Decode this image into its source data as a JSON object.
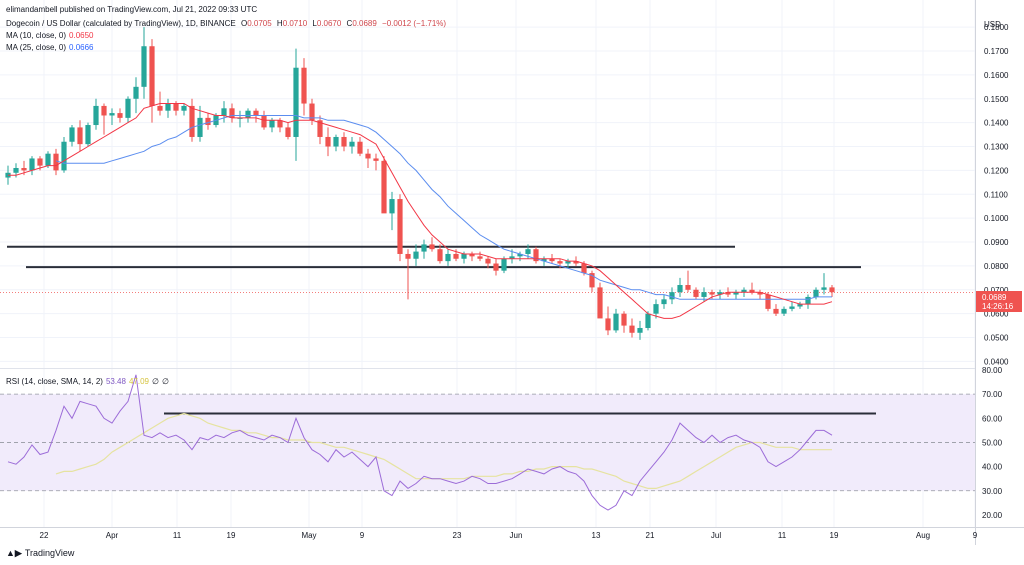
{
  "header": {
    "publisher": "elimandambell published on TradingView.com, Jul 21, 2022 09:33 UTC",
    "symbol": "Dogecoin / US Dollar (calculated by TradingView), 1D, BINANCE",
    "o_label": "O",
    "o_value": "0.0705",
    "h_label": "H",
    "h_value": "0.0710",
    "l_label": "L",
    "l_value": "0.0670",
    "c_label": "C",
    "c_value": "0.0689",
    "change": "−0.0012 (−1.71%)",
    "ma10_label": "MA (10, close, 0)",
    "ma10_value": "0.0650",
    "ma25_label": "MA (25, close, 0)",
    "ma25_value": "0.0666",
    "rsi_label": "RSI (14, close, SMA, 14, 2)",
    "rsi_value": "53.48",
    "rsi_sma_value": "47.09",
    "rsi_extra1": "∅",
    "rsi_extra2": "∅"
  },
  "brand": {
    "name": "TradingView",
    "logo_icon": "tradingview-logo-icon"
  },
  "colors": {
    "up": "#26a69a",
    "down": "#ef5350",
    "ma10": "#f23645",
    "ma25": "#5b8def",
    "rsi": "#9c6cd8",
    "rsi_sma": "#e6e3a0",
    "rsi_band": "#f1ebfb",
    "hline": "#2a2e39"
  },
  "chart_data": [
    {
      "type": "candlestick",
      "unit": "USD",
      "yaxis_label": "USD",
      "ylim": [
        0.0385,
        0.1855
      ],
      "ticks": [
        "0.0400",
        "0.0500",
        "0.0600",
        "0.0700",
        "0.0800",
        "0.0900",
        "0.1000",
        "0.1100",
        "0.1200",
        "0.1300",
        "0.1400",
        "0.1500",
        "0.1600",
        "0.1700",
        "0.1800"
      ],
      "last_price": "0.0689",
      "countdown": "14:26:16",
      "xlabels": [
        "22",
        "Apr",
        "11",
        "19",
        "May",
        "9",
        "23",
        "Jun",
        "13",
        "21",
        "Jul",
        "11",
        "19",
        "Aug",
        "9"
      ],
      "candles_ohlc": [
        [
          0.117,
          0.122,
          0.114,
          0.119
        ],
        [
          0.119,
          0.123,
          0.117,
          0.121
        ],
        [
          0.121,
          0.124,
          0.118,
          0.12
        ],
        [
          0.12,
          0.126,
          0.118,
          0.125
        ],
        [
          0.125,
          0.126,
          0.12,
          0.122
        ],
        [
          0.122,
          0.128,
          0.121,
          0.127
        ],
        [
          0.127,
          0.129,
          0.118,
          0.12
        ],
        [
          0.12,
          0.134,
          0.119,
          0.132
        ],
        [
          0.132,
          0.139,
          0.13,
          0.138
        ],
        [
          0.138,
          0.141,
          0.128,
          0.131
        ],
        [
          0.131,
          0.14,
          0.13,
          0.139
        ],
        [
          0.139,
          0.15,
          0.137,
          0.147
        ],
        [
          0.147,
          0.148,
          0.135,
          0.143
        ],
        [
          0.143,
          0.146,
          0.139,
          0.144
        ],
        [
          0.144,
          0.146,
          0.14,
          0.142
        ],
        [
          0.142,
          0.151,
          0.14,
          0.15
        ],
        [
          0.15,
          0.159,
          0.144,
          0.155
        ],
        [
          0.155,
          0.18,
          0.15,
          0.172
        ],
        [
          0.172,
          0.175,
          0.14,
          0.147
        ],
        [
          0.147,
          0.153,
          0.143,
          0.145
        ],
        [
          0.145,
          0.15,
          0.142,
          0.148
        ],
        [
          0.148,
          0.149,
          0.143,
          0.145
        ],
        [
          0.145,
          0.148,
          0.143,
          0.147
        ],
        [
          0.147,
          0.15,
          0.132,
          0.134
        ],
        [
          0.134,
          0.147,
          0.132,
          0.142
        ],
        [
          0.142,
          0.144,
          0.137,
          0.139
        ],
        [
          0.139,
          0.144,
          0.138,
          0.143
        ],
        [
          0.143,
          0.149,
          0.14,
          0.146
        ],
        [
          0.146,
          0.148,
          0.14,
          0.142
        ],
        [
          0.142,
          0.145,
          0.138,
          0.142
        ],
        [
          0.142,
          0.146,
          0.14,
          0.145
        ],
        [
          0.145,
          0.146,
          0.14,
          0.143
        ],
        [
          0.143,
          0.145,
          0.137,
          0.138
        ],
        [
          0.138,
          0.142,
          0.136,
          0.141
        ],
        [
          0.141,
          0.142,
          0.136,
          0.138
        ],
        [
          0.138,
          0.14,
          0.133,
          0.134
        ],
        [
          0.134,
          0.171,
          0.124,
          0.163
        ],
        [
          0.163,
          0.167,
          0.143,
          0.148
        ],
        [
          0.148,
          0.15,
          0.139,
          0.141
        ],
        [
          0.141,
          0.143,
          0.131,
          0.134
        ],
        [
          0.134,
          0.138,
          0.126,
          0.13
        ],
        [
          0.13,
          0.135,
          0.128,
          0.134
        ],
        [
          0.134,
          0.136,
          0.128,
          0.13
        ],
        [
          0.13,
          0.134,
          0.127,
          0.132
        ],
        [
          0.132,
          0.134,
          0.126,
          0.127
        ],
        [
          0.127,
          0.129,
          0.121,
          0.125
        ],
        [
          0.125,
          0.127,
          0.12,
          0.124
        ],
        [
          0.124,
          0.126,
          0.109,
          0.102
        ],
        [
          0.102,
          0.111,
          0.095,
          0.108
        ],
        [
          0.108,
          0.11,
          0.082,
          0.085
        ],
        [
          0.085,
          0.087,
          0.066,
          0.083
        ],
        [
          0.083,
          0.089,
          0.08,
          0.086
        ],
        [
          0.086,
          0.091,
          0.083,
          0.089
        ],
        [
          0.089,
          0.092,
          0.086,
          0.087
        ],
        [
          0.087,
          0.089,
          0.081,
          0.082
        ],
        [
          0.082,
          0.087,
          0.08,
          0.085
        ],
        [
          0.085,
          0.087,
          0.082,
          0.083
        ],
        [
          0.083,
          0.086,
          0.081,
          0.085
        ],
        [
          0.085,
          0.086,
          0.082,
          0.084
        ],
        [
          0.084,
          0.086,
          0.082,
          0.083
        ],
        [
          0.083,
          0.084,
          0.079,
          0.081
        ],
        [
          0.081,
          0.083,
          0.076,
          0.078
        ],
        [
          0.078,
          0.084,
          0.077,
          0.083
        ],
        [
          0.083,
          0.087,
          0.081,
          0.084
        ],
        [
          0.084,
          0.086,
          0.082,
          0.085
        ],
        [
          0.085,
          0.089,
          0.083,
          0.087
        ],
        [
          0.087,
          0.088,
          0.081,
          0.082
        ],
        [
          0.082,
          0.084,
          0.08,
          0.083
        ],
        [
          0.083,
          0.085,
          0.081,
          0.082
        ],
        [
          0.082,
          0.083,
          0.079,
          0.081
        ],
        [
          0.081,
          0.083,
          0.079,
          0.082
        ],
        [
          0.082,
          0.084,
          0.08,
          0.081
        ],
        [
          0.081,
          0.082,
          0.076,
          0.077
        ],
        [
          0.077,
          0.078,
          0.069,
          0.071
        ],
        [
          0.071,
          0.073,
          0.061,
          0.058
        ],
        [
          0.058,
          0.063,
          0.051,
          0.053
        ],
        [
          0.053,
          0.062,
          0.052,
          0.06
        ],
        [
          0.06,
          0.061,
          0.052,
          0.055
        ],
        [
          0.055,
          0.058,
          0.05,
          0.052
        ],
        [
          0.052,
          0.057,
          0.049,
          0.054
        ],
        [
          0.054,
          0.061,
          0.053,
          0.06
        ],
        [
          0.06,
          0.066,
          0.058,
          0.064
        ],
        [
          0.064,
          0.068,
          0.062,
          0.066
        ],
        [
          0.066,
          0.071,
          0.064,
          0.069
        ],
        [
          0.069,
          0.075,
          0.067,
          0.072
        ],
        [
          0.072,
          0.078,
          0.069,
          0.07
        ],
        [
          0.07,
          0.071,
          0.066,
          0.067
        ],
        [
          0.067,
          0.071,
          0.065,
          0.069
        ],
        [
          0.069,
          0.07,
          0.066,
          0.068
        ],
        [
          0.068,
          0.07,
          0.066,
          0.069
        ],
        [
          0.069,
          0.071,
          0.067,
          0.068
        ],
        [
          0.068,
          0.07,
          0.066,
          0.069
        ],
        [
          0.069,
          0.071,
          0.067,
          0.07
        ],
        [
          0.07,
          0.073,
          0.068,
          0.069
        ],
        [
          0.069,
          0.07,
          0.066,
          0.068
        ],
        [
          0.068,
          0.069,
          0.061,
          0.062
        ],
        [
          0.062,
          0.064,
          0.059,
          0.06
        ],
        [
          0.06,
          0.063,
          0.059,
          0.062
        ],
        [
          0.062,
          0.065,
          0.061,
          0.063
        ],
        [
          0.063,
          0.065,
          0.062,
          0.064
        ],
        [
          0.064,
          0.068,
          0.062,
          0.067
        ],
        [
          0.067,
          0.071,
          0.066,
          0.07
        ],
        [
          0.07,
          0.077,
          0.068,
          0.071
        ],
        [
          0.071,
          0.072,
          0.067,
          0.069
        ]
      ],
      "ma10": [
        0.118,
        0.118,
        0.119,
        0.12,
        0.121,
        0.122,
        0.122,
        0.124,
        0.126,
        0.128,
        0.13,
        0.132,
        0.134,
        0.136,
        0.138,
        0.14,
        0.142,
        0.146,
        0.147,
        0.148,
        0.148,
        0.148,
        0.148,
        0.146,
        0.145,
        0.144,
        0.143,
        0.143,
        0.142,
        0.142,
        0.142,
        0.142,
        0.141,
        0.141,
        0.141,
        0.14,
        0.141,
        0.141,
        0.141,
        0.14,
        0.139,
        0.138,
        0.137,
        0.136,
        0.135,
        0.133,
        0.131,
        0.125,
        0.119,
        0.113,
        0.107,
        0.102,
        0.097,
        0.093,
        0.09,
        0.087,
        0.086,
        0.085,
        0.085,
        0.085,
        0.084,
        0.083,
        0.083,
        0.083,
        0.083,
        0.083,
        0.083,
        0.083,
        0.083,
        0.083,
        0.082,
        0.082,
        0.081,
        0.08,
        0.078,
        0.075,
        0.072,
        0.069,
        0.066,
        0.063,
        0.06,
        0.059,
        0.058,
        0.058,
        0.059,
        0.061,
        0.063,
        0.065,
        0.067,
        0.068,
        0.069,
        0.069,
        0.069,
        0.069,
        0.069,
        0.068,
        0.067,
        0.066,
        0.065,
        0.064,
        0.064,
        0.064,
        0.064,
        0.065
      ],
      "ma25": [
        0.124,
        0.123,
        0.123,
        0.123,
        0.123,
        0.123,
        0.123,
        0.124,
        0.125,
        0.126,
        0.127,
        0.128,
        0.13,
        0.131,
        0.133,
        0.134,
        0.136,
        0.138,
        0.139,
        0.14,
        0.141,
        0.142,
        0.143,
        0.143,
        0.143,
        0.143,
        0.143,
        0.143,
        0.143,
        0.143,
        0.143,
        0.142,
        0.142,
        0.142,
        0.141,
        0.141,
        0.141,
        0.14,
        0.139,
        0.138,
        0.136,
        0.133,
        0.13,
        0.127,
        0.123,
        0.12,
        0.116,
        0.112,
        0.109,
        0.105,
        0.102,
        0.099,
        0.096,
        0.093,
        0.091,
        0.089,
        0.087,
        0.086,
        0.085,
        0.084,
        0.083,
        0.082,
        0.081,
        0.08,
        0.079,
        0.078,
        0.077,
        0.076,
        0.074,
        0.073,
        0.072,
        0.071,
        0.07,
        0.07,
        0.069,
        0.068,
        0.068,
        0.067,
        0.066,
        0.066,
        0.066,
        0.066,
        0.066,
        0.066,
        0.066,
        0.066,
        0.066,
        0.066,
        0.066,
        0.066,
        0.066,
        0.066,
        0.066,
        0.066,
        0.066,
        0.067,
        0.067,
        0.067
      ]
    },
    {
      "type": "line",
      "title": "RSI (14, close, SMA, 14, 2)",
      "ylim": [
        15,
        80
      ],
      "ticks": [
        "20.00",
        "30.00",
        "40.00",
        "50.00",
        "60.00",
        "70.00",
        "80.00"
      ],
      "band": [
        30,
        70
      ],
      "midline": 50,
      "rsi": [
        42,
        41,
        44,
        49,
        45,
        46,
        55,
        65,
        60,
        67,
        66,
        65,
        60,
        58,
        63,
        67,
        78,
        53,
        52,
        54,
        52,
        53,
        51,
        47,
        52,
        51,
        53,
        52,
        54,
        55,
        53,
        52,
        51,
        53,
        52,
        50,
        60,
        52,
        47,
        45,
        42,
        47,
        44,
        46,
        43,
        40,
        44,
        30,
        28,
        34,
        31,
        33,
        36,
        35,
        35,
        34,
        33,
        34,
        36,
        35,
        33,
        33,
        34,
        35,
        37,
        39,
        38,
        37,
        39,
        40,
        38,
        37,
        34,
        28,
        24,
        22,
        24,
        30,
        28,
        34,
        38,
        42,
        46,
        51,
        58,
        55,
        52,
        50,
        53,
        50,
        52,
        53,
        51,
        50,
        48,
        42,
        40,
        42,
        44,
        47,
        51,
        55,
        55,
        53
      ],
      "rsi_sma": [
        37,
        38,
        38,
        39,
        40,
        41,
        43,
        46,
        48,
        50,
        52,
        54,
        56,
        58,
        60,
        61,
        62,
        61,
        60,
        58,
        57,
        56,
        55,
        55,
        54,
        54,
        53,
        52,
        52,
        51,
        51,
        51,
        50,
        50,
        49,
        48,
        48,
        47,
        46,
        45,
        44,
        43,
        41,
        39,
        37,
        35,
        35,
        35,
        35,
        35,
        35,
        35,
        36,
        36,
        36,
        36,
        37,
        37,
        38,
        38,
        39,
        39,
        40,
        40,
        40,
        40,
        39,
        39,
        38,
        37,
        36,
        34,
        33,
        32,
        31,
        31,
        32,
        33,
        34,
        36,
        38,
        40,
        42,
        44,
        46,
        48,
        49,
        50,
        50,
        49,
        48,
        48,
        48,
        47,
        47,
        47,
        47,
        47
      ],
      "hline_level": 62,
      "xlabels": [
        "22",
        "Apr",
        "11",
        "19",
        "May",
        "9",
        "23",
        "Jun",
        "13",
        "21",
        "Jul",
        "11",
        "19",
        "Aug",
        "9"
      ]
    }
  ]
}
